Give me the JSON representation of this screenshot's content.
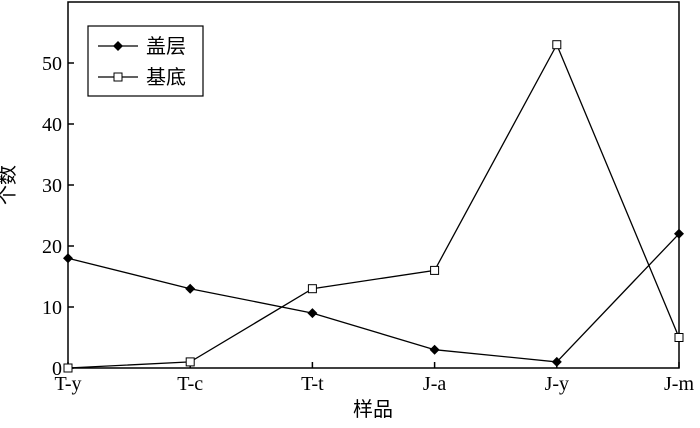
{
  "chart_data": {
    "type": "line",
    "x_label": "样品",
    "y_label": "个数",
    "categories": [
      "T-y",
      "T-c",
      "T-t",
      "J-a",
      "J-y",
      "J-m"
    ],
    "series": [
      {
        "name": "盖层",
        "color": "#000000",
        "marker": "diamond",
        "values": [
          18,
          13,
          9,
          3,
          1,
          22
        ]
      },
      {
        "name": "基底",
        "color": "#000000",
        "marker": "square-open",
        "values": [
          0,
          1,
          13,
          16,
          53,
          5
        ]
      }
    ],
    "ylim": [
      0,
      60
    ],
    "yticks": [
      0,
      10,
      20,
      30,
      40,
      50
    ],
    "legend": "upper left"
  }
}
